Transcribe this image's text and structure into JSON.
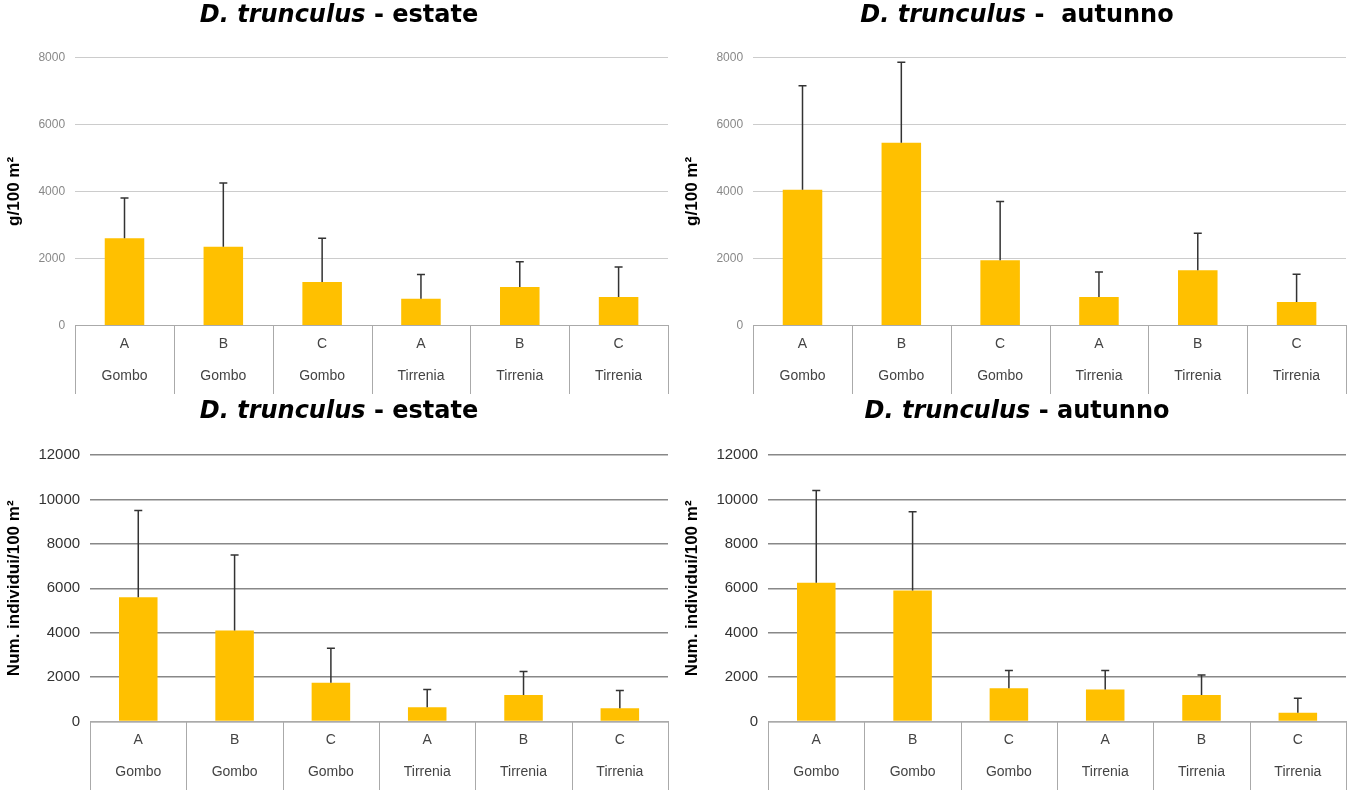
{
  "chart_data": [
    {
      "type": "bar",
      "title": "D. trunculus - estate",
      "ylabel": "g/100 m²",
      "categories": [
        "A\nGombo",
        "B\nGombo",
        "C\nGombo",
        "A\nTirrenia",
        "B\nTirrenia",
        "C\nTirrenia"
      ],
      "values": [
        2600,
        2350,
        1300,
        800,
        1150,
        850
      ],
      "errors": [
        [
          2600,
          3800
        ],
        [
          2350,
          4250
        ],
        [
          1300,
          2600
        ],
        [
          800,
          1520
        ],
        [
          1150,
          1900
        ],
        [
          850,
          1750
        ]
      ],
      "color": "#ffc000",
      "ylim": [
        0,
        8000
      ],
      "yticks": [
        0,
        2000,
        4000,
        6000,
        8000
      ],
      "grid": "y",
      "legend": false
    },
    {
      "type": "bar",
      "title": "D. trunculus -  autunno",
      "ylabel": "g/100 m²",
      "categories": [
        "A\nGombo",
        "B\nGombo",
        "C\nGombo",
        "A\nTirrenia",
        "B\nTirrenia",
        "C\nTirrenia"
      ],
      "values": [
        4050,
        5450,
        1950,
        850,
        1650,
        700
      ],
      "errors": [
        [
          4050,
          7150
        ],
        [
          5450,
          7850
        ],
        [
          1950,
          3700
        ],
        [
          850,
          1600
        ],
        [
          1650,
          2750
        ],
        [
          700,
          1530
        ]
      ],
      "color": "#ffc000",
      "ylim": [
        0,
        8000
      ],
      "yticks": [
        0,
        2000,
        4000,
        6000,
        8000
      ],
      "grid": "y",
      "legend": false
    },
    {
      "type": "bar",
      "title": "D. trunculus - estate",
      "ylabel": "Num. individui/100 m²",
      "categories": [
        "A\nGombo",
        "B\nGombo",
        "C\nGombo",
        "A\nTirrenia",
        "B\nTirrenia",
        "C\nTirrenia"
      ],
      "values": [
        5600,
        4100,
        1750,
        650,
        1200,
        600
      ],
      "errors": [
        [
          5600,
          9500
        ],
        [
          4100,
          7500
        ],
        [
          1750,
          3300
        ],
        [
          650,
          1450
        ],
        [
          1200,
          2250
        ],
        [
          600,
          1400
        ]
      ],
      "color": "#ffc000",
      "ylim": [
        0,
        12000
      ],
      "yticks": [
        0,
        2000,
        4000,
        6000,
        8000,
        10000,
        12000
      ],
      "grid": "y",
      "legend": false
    },
    {
      "type": "bar",
      "title": "D. trunculus - autunno",
      "ylabel": "Num. individui/100 m²",
      "categories": [
        "A\nGombo",
        "B\nGombo",
        "C\nGombo",
        "A\nTirrenia",
        "B\nTirrenia",
        "C\nTirrenia"
      ],
      "values": [
        6250,
        5900,
        1500,
        1450,
        1200,
        400
      ],
      "errors": [
        [
          6250,
          10400
        ],
        [
          5900,
          9450
        ],
        [
          1500,
          2300
        ],
        [
          1450,
          2300
        ],
        [
          1200,
          2100
        ],
        [
          400,
          1050
        ]
      ],
      "color": "#ffc000",
      "ylim": [
        0,
        12000
      ],
      "yticks": [
        0,
        2000,
        4000,
        6000,
        8000,
        10000,
        12000
      ],
      "grid": "y",
      "legend": false
    }
  ]
}
